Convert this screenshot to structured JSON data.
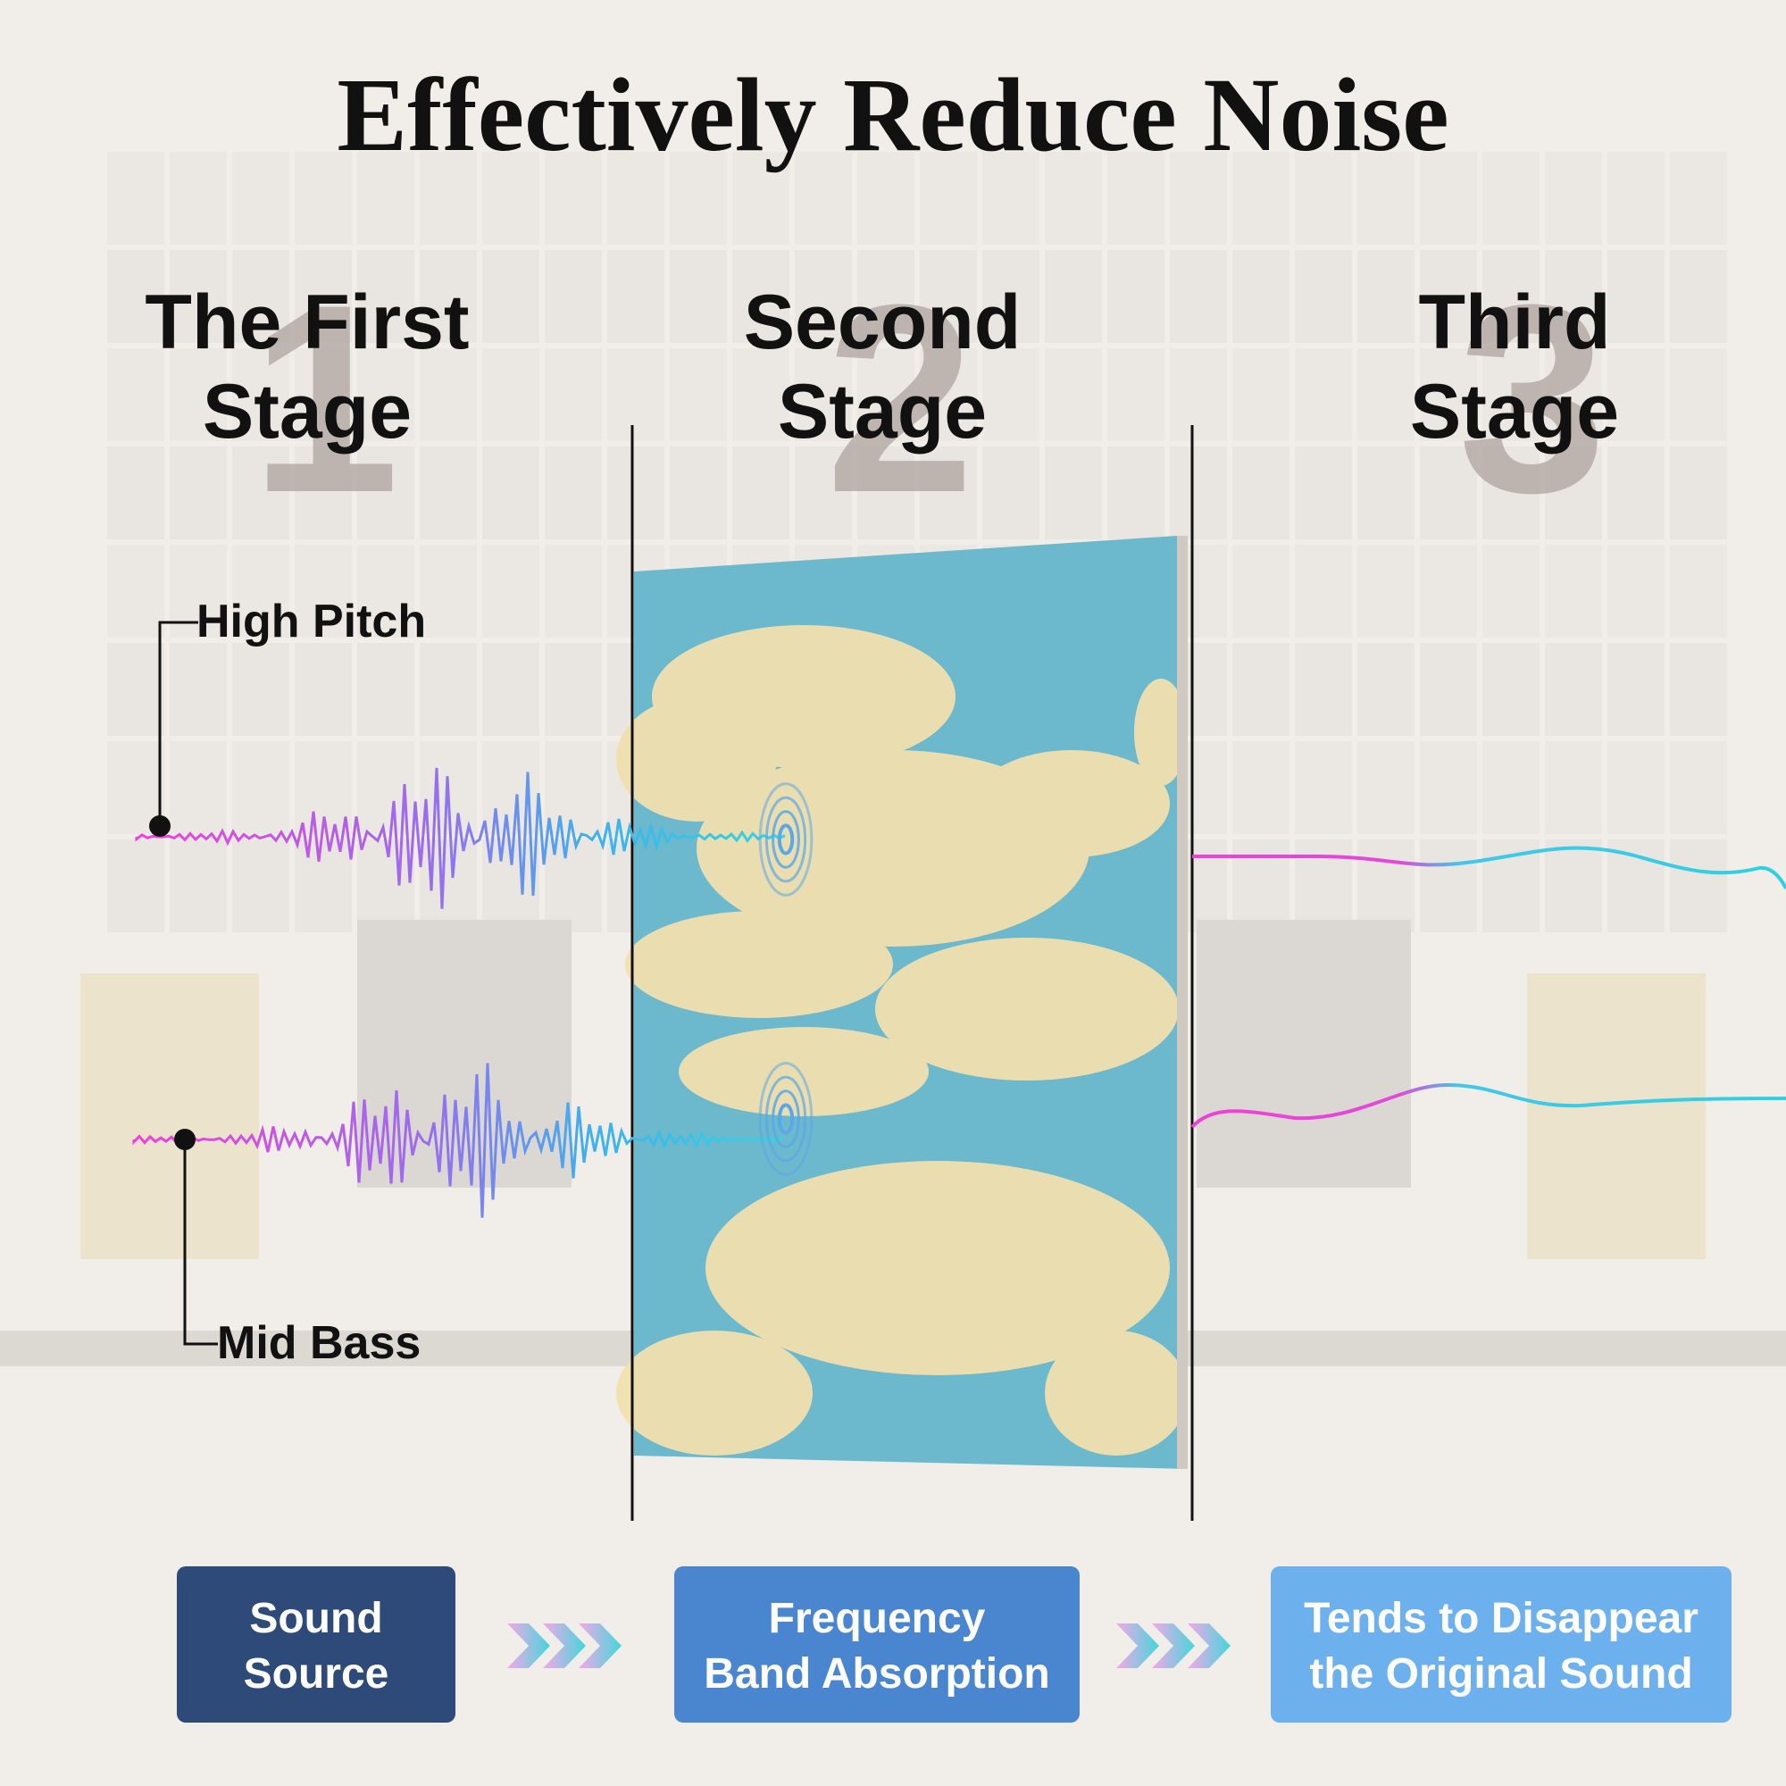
{
  "title": "Effectively Reduce Noise",
  "stages": [
    {
      "number": "1",
      "lines": [
        "The First",
        "Stage"
      ]
    },
    {
      "number": "2",
      "lines": [
        "Second",
        "Stage"
      ]
    },
    {
      "number": "3",
      "lines": [
        "Third",
        "Stage"
      ]
    }
  ],
  "labels": {
    "high": "High Pitch",
    "mid": "Mid Bass"
  },
  "steps": [
    {
      "lines": [
        "Sound",
        "Source"
      ]
    },
    {
      "lines": [
        "Frequency",
        "Band Absorption"
      ]
    },
    {
      "lines": [
        "Tends to Disappear",
        "the Original Sound"
      ]
    }
  ]
}
